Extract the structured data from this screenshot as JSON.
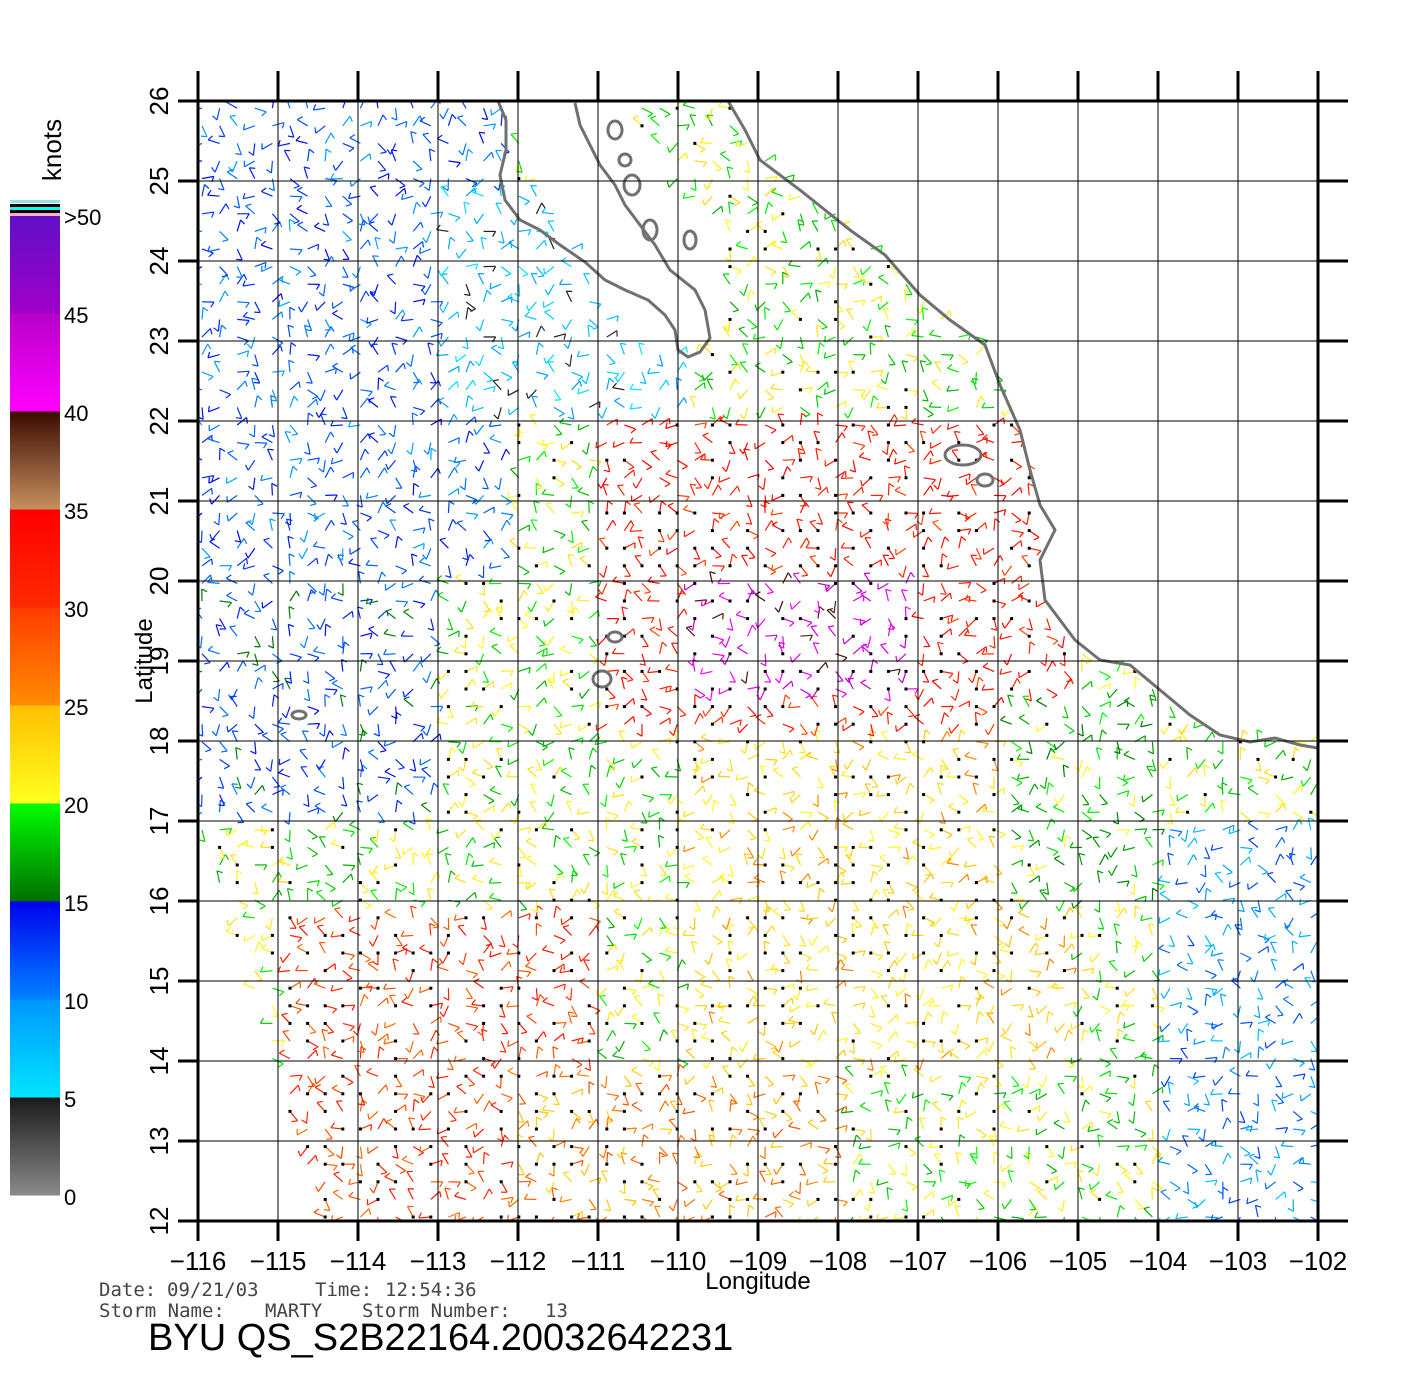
{
  "chart_data": {
    "type": "scatter",
    "xlabel": "Longitude",
    "ylabel": "Latitude",
    "xlim": [
      -116,
      -102
    ],
    "ylim": [
      12,
      26
    ],
    "x_ticks": [
      "−116",
      "−115",
      "−114",
      "−113",
      "−112",
      "−111",
      "−110",
      "−109",
      "−108",
      "−107",
      "−106",
      "−105",
      "−104",
      "−103",
      "−102"
    ],
    "y_ticks": [
      "12",
      "13",
      "14",
      "15",
      "16",
      "17",
      "18",
      "19",
      "20",
      "21",
      "22",
      "23",
      "24",
      "25",
      "26"
    ],
    "grid": true,
    "colorbar": {
      "title": "knots",
      "labels": [
        "0",
        "5",
        "10",
        "15",
        "20",
        "25",
        "30",
        "35",
        "40",
        "45",
        ">50"
      ],
      "segments": [
        {
          "from": 0,
          "to": 5,
          "colors": [
            "#8a8a8a",
            "#1a1a1a"
          ]
        },
        {
          "from": 5,
          "to": 10,
          "colors": [
            "#00e5ff",
            "#0096ff"
          ]
        },
        {
          "from": 10,
          "to": 15,
          "colors": [
            "#0082ff",
            "#0000ee"
          ]
        },
        {
          "from": 15,
          "to": 20,
          "colors": [
            "#006e00",
            "#00ff00"
          ]
        },
        {
          "from": 20,
          "to": 25,
          "colors": [
            "#ffff20",
            "#ffbf00"
          ]
        },
        {
          "from": 25,
          "to": 30,
          "colors": [
            "#ff8c00",
            "#ff3c00"
          ]
        },
        {
          "from": 30,
          "to": 35,
          "colors": [
            "#ff2a00",
            "#ff0000"
          ]
        },
        {
          "from": 35,
          "to": 40,
          "colors": [
            "#c89060",
            "#3a0a00"
          ]
        },
        {
          "from": 40,
          "to": 45,
          "colors": [
            "#ff00ff",
            "#b800c8"
          ]
        },
        {
          "from": 45,
          "to": 50,
          "colors": [
            "#a000c8",
            "#6010c8"
          ]
        }
      ]
    },
    "wind_field": {
      "description_units": "knots",
      "speed_regions": [
        {
          "lon": [
            -116,
            -112
          ],
          "lat": [
            20,
            26
          ],
          "speed": 12
        },
        {
          "lon": [
            -113,
            -110
          ],
          "lat": [
            22,
            25
          ],
          "speed": 7
        },
        {
          "lon": [
            -116,
            -113
          ],
          "lat": [
            17,
            20
          ],
          "speed": 13
        },
        {
          "lon": [
            -111,
            -105
          ],
          "lat": [
            18,
            22
          ],
          "speed": 32
        },
        {
          "lon": [
            -110,
            -107
          ],
          "lat": [
            18.5,
            20
          ],
          "speed": 42
        },
        {
          "lon": [
            -115,
            -111
          ],
          "lat": [
            12,
            16
          ],
          "speed": 30
        },
        {
          "lon": [
            -110,
            -105
          ],
          "lat": [
            14,
            18
          ],
          "speed": 23
        },
        {
          "lon": [
            -104,
            -102
          ],
          "lat": [
            12,
            17
          ],
          "speed": 10
        },
        {
          "lon": [
            -106,
            -104
          ],
          "lat": [
            16,
            18.5
          ],
          "speed": 18
        },
        {
          "lon": [
            -112,
            -108
          ],
          "lat": [
            12,
            14
          ],
          "speed": 26
        }
      ]
    }
  },
  "footer": {
    "date_label": "Date:",
    "date": "09/21/03",
    "time_label": "Time:",
    "time": "12:54:36",
    "storm_name_label": "Storm Name:",
    "storm_name": "MARTY",
    "storm_number_label": "Storm Number:",
    "storm_number": "13",
    "product_id": "BYU QS_S2B22164.20032642231"
  },
  "colors": {
    "coast": "#707070",
    "grid": "#000000"
  }
}
